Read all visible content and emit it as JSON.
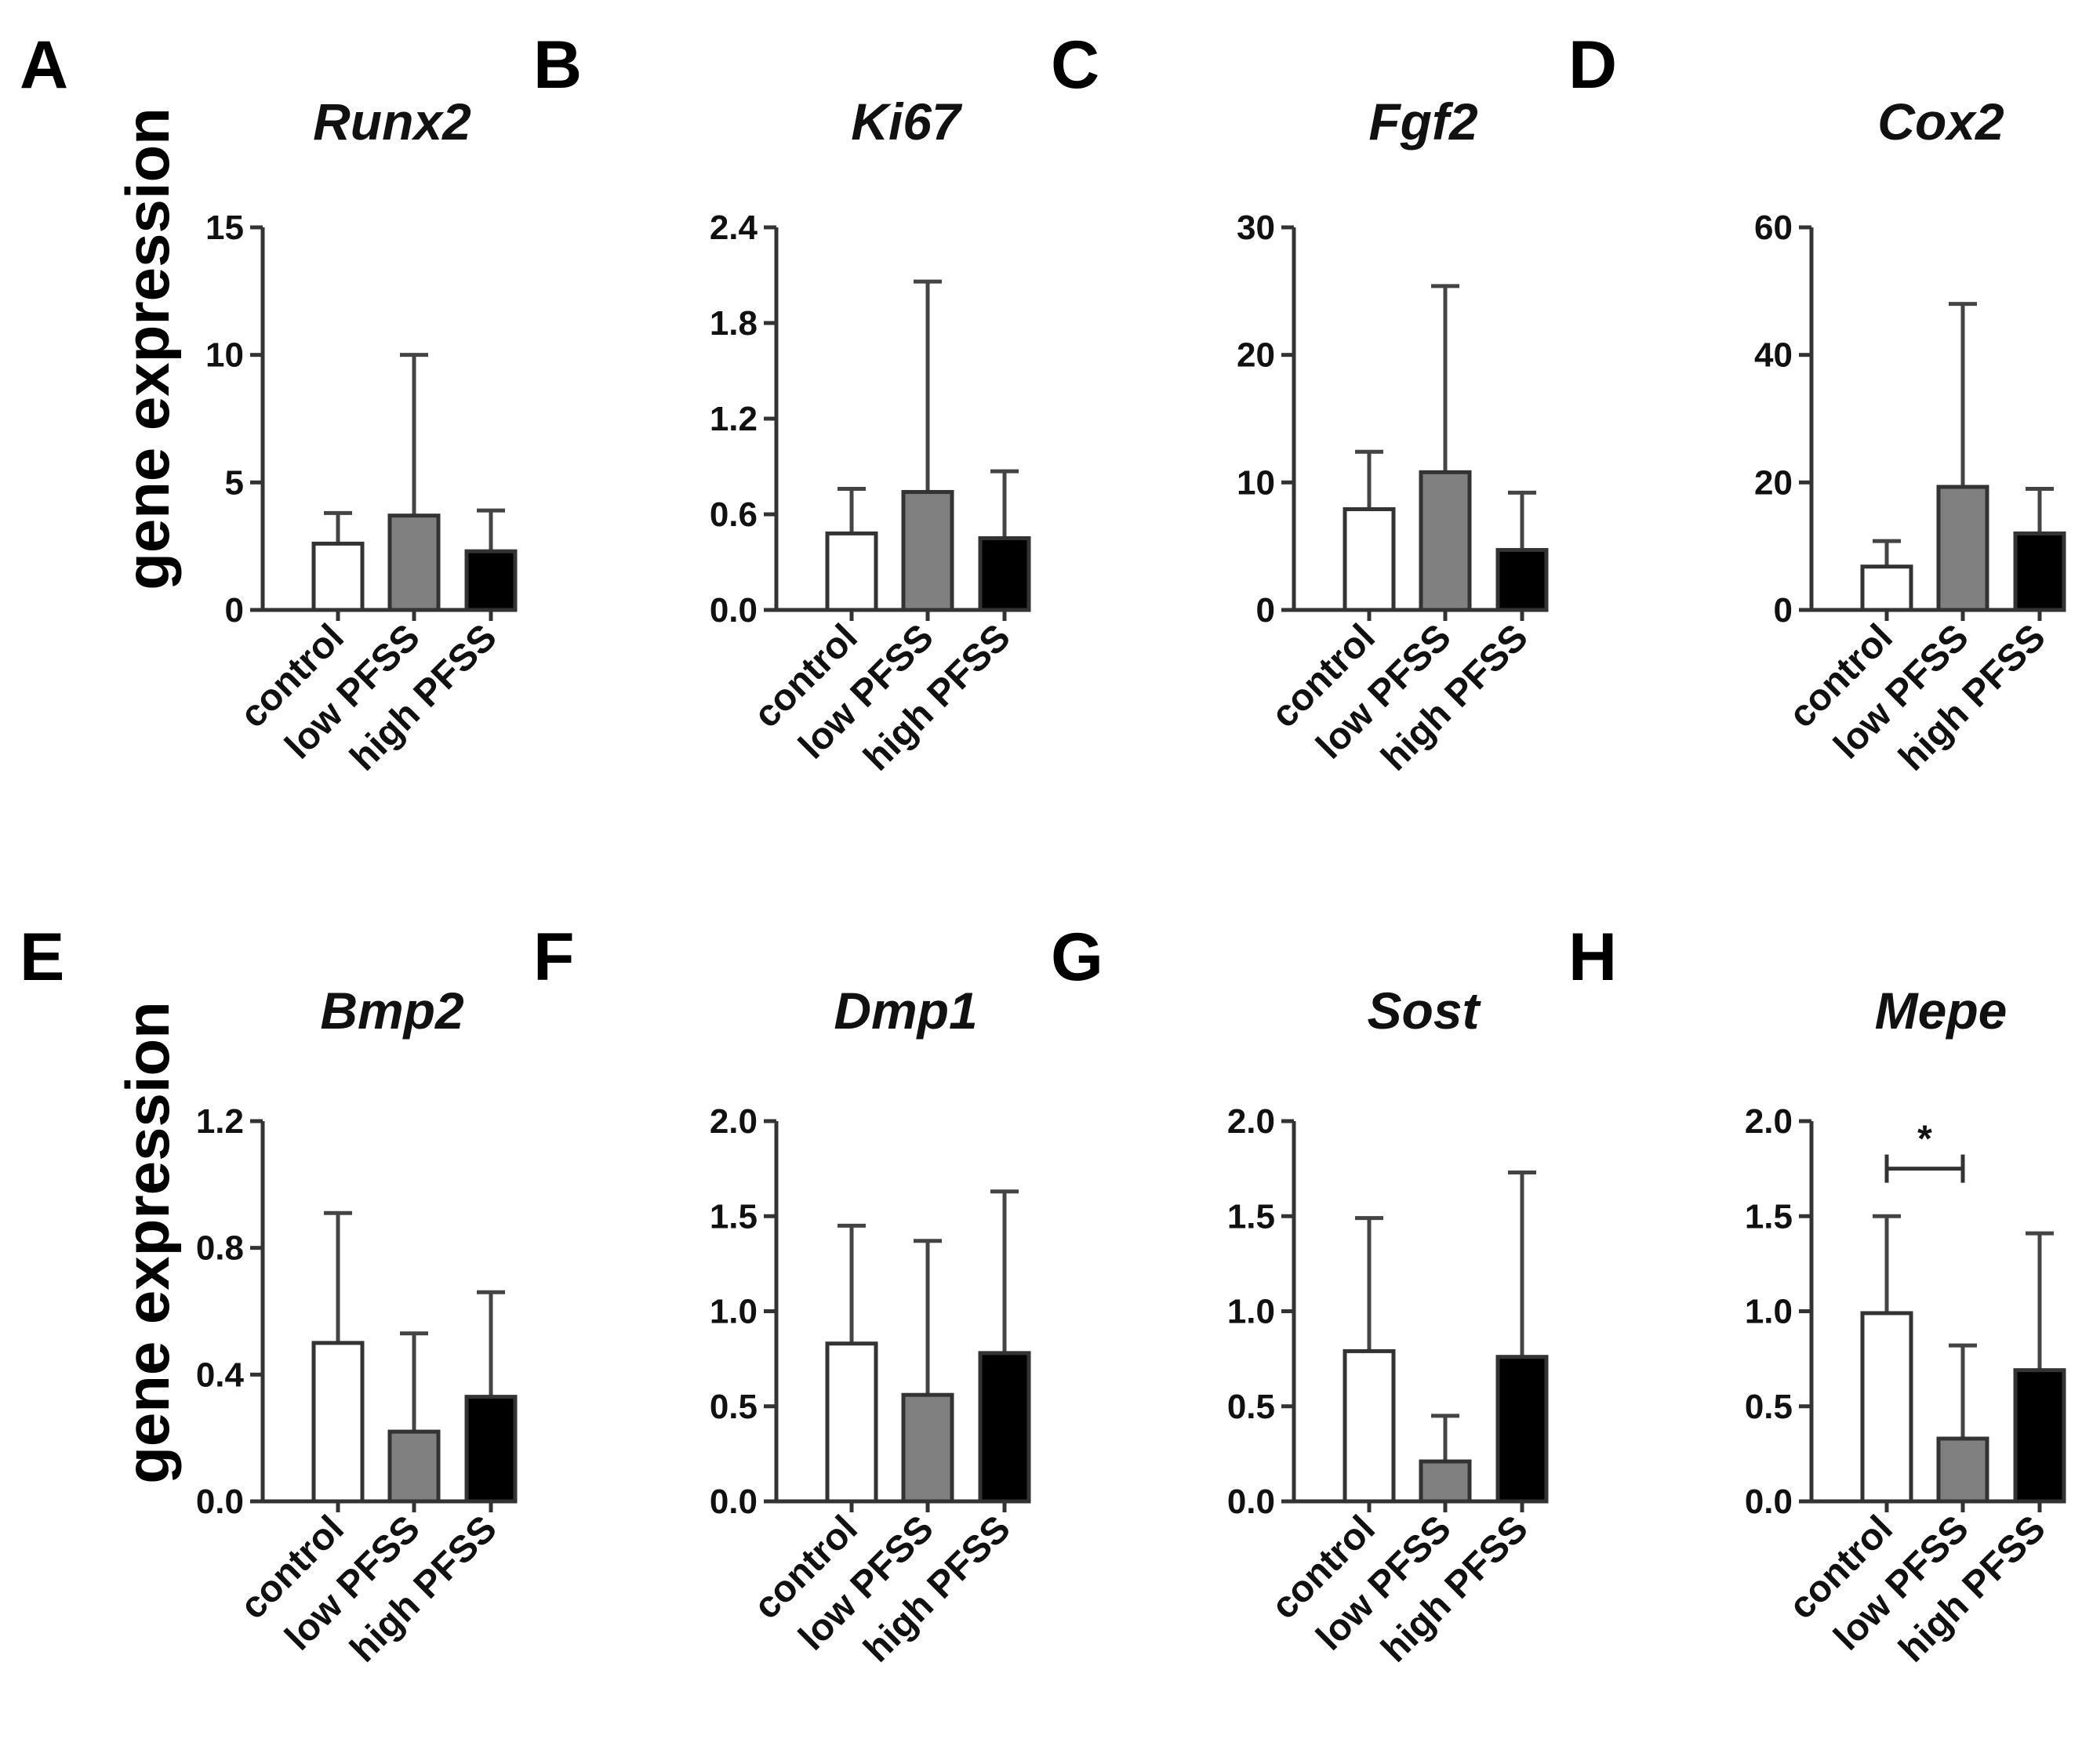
{
  "ylabel": "gene expression",
  "colors": {
    "control": "#ffffff",
    "low PFSS": "#808080",
    "high PFSS": "#000000",
    "stroke": "#333333"
  },
  "chart_data": [
    {
      "panel": "A",
      "type": "bar",
      "title": "Runx2",
      "categories": [
        "control",
        "low PFSS",
        "high PFSS"
      ],
      "values": [
        2.6,
        3.7,
        2.3
      ],
      "error_upper": [
        3.8,
        10.0,
        3.9
      ],
      "ylim": [
        0,
        15
      ],
      "yticks": [
        0,
        5,
        10,
        15
      ],
      "ytick_labels": [
        "0",
        "5",
        "10",
        "15"
      ]
    },
    {
      "panel": "B",
      "type": "bar",
      "title": "Ki67",
      "categories": [
        "control",
        "low PFSS",
        "high PFSS"
      ],
      "values": [
        0.48,
        0.74,
        0.45
      ],
      "error_upper": [
        0.76,
        2.06,
        0.87
      ],
      "ylim": [
        0,
        2.4
      ],
      "yticks": [
        0,
        0.6,
        1.2,
        1.8,
        2.4
      ],
      "ytick_labels": [
        "0.0",
        "0.6",
        "1.2",
        "1.8",
        "2.4"
      ]
    },
    {
      "panel": "C",
      "type": "bar",
      "title": "Fgf2",
      "categories": [
        "control",
        "low PFSS",
        "high PFSS"
      ],
      "values": [
        7.9,
        10.8,
        4.7
      ],
      "error_upper": [
        12.4,
        25.4,
        9.2
      ],
      "ylim": [
        0,
        30
      ],
      "yticks": [
        0,
        10,
        20,
        30
      ],
      "ytick_labels": [
        "0",
        "10",
        "20",
        "30"
      ]
    },
    {
      "panel": "D",
      "type": "bar",
      "title": "Cox2",
      "categories": [
        "control",
        "low PFSS",
        "high PFSS"
      ],
      "values": [
        6.8,
        19.3,
        12.0
      ],
      "error_upper": [
        10.8,
        48.0,
        19.0
      ],
      "ylim": [
        0,
        60
      ],
      "yticks": [
        0,
        20,
        40,
        60
      ],
      "ytick_labels": [
        "0",
        "20",
        "40",
        "60"
      ]
    },
    {
      "panel": "E",
      "type": "bar",
      "title": "Bmp2",
      "categories": [
        "control",
        "low PFSS",
        "high PFSS"
      ],
      "values": [
        0.5,
        0.22,
        0.33
      ],
      "error_upper": [
        0.91,
        0.53,
        0.66
      ],
      "ylim": [
        0,
        1.2
      ],
      "yticks": [
        0,
        0.4,
        0.8,
        1.2
      ],
      "ytick_labels": [
        "0.0",
        "0.4",
        "0.8",
        "1.2"
      ]
    },
    {
      "panel": "F",
      "type": "bar",
      "title": "Dmp1",
      "categories": [
        "control",
        "low PFSS",
        "high PFSS"
      ],
      "values": [
        0.83,
        0.56,
        0.78
      ],
      "error_upper": [
        1.45,
        1.37,
        1.63
      ],
      "ylim": [
        0,
        2.0
      ],
      "yticks": [
        0,
        0.5,
        1.0,
        1.5,
        2.0
      ],
      "ytick_labels": [
        "0.0",
        "0.5",
        "1.0",
        "1.5",
        "2.0"
      ]
    },
    {
      "panel": "G",
      "type": "bar",
      "title": "Sost",
      "categories": [
        "control",
        "low PFSS",
        "high PFSS"
      ],
      "values": [
        0.79,
        0.21,
        0.76
      ],
      "error_upper": [
        1.49,
        0.45,
        1.73
      ],
      "ylim": [
        0,
        2.0
      ],
      "yticks": [
        0,
        0.5,
        1.0,
        1.5,
        2.0
      ],
      "ytick_labels": [
        "0.0",
        "0.5",
        "1.0",
        "1.5",
        "2.0"
      ]
    },
    {
      "panel": "H",
      "type": "bar",
      "title": "Mepe",
      "categories": [
        "control",
        "low PFSS",
        "high PFSS"
      ],
      "values": [
        0.99,
        0.33,
        0.69
      ],
      "error_upper": [
        1.5,
        0.82,
        1.41
      ],
      "ylim": [
        0,
        2.0
      ],
      "yticks": [
        0,
        0.5,
        1.0,
        1.5,
        2.0
      ],
      "ytick_labels": [
        "0.0",
        "0.5",
        "1.0",
        "1.5",
        "2.0"
      ],
      "significance": {
        "between": [
          "control",
          "low PFSS"
        ],
        "label": "*",
        "y": 1.75
      }
    }
  ]
}
